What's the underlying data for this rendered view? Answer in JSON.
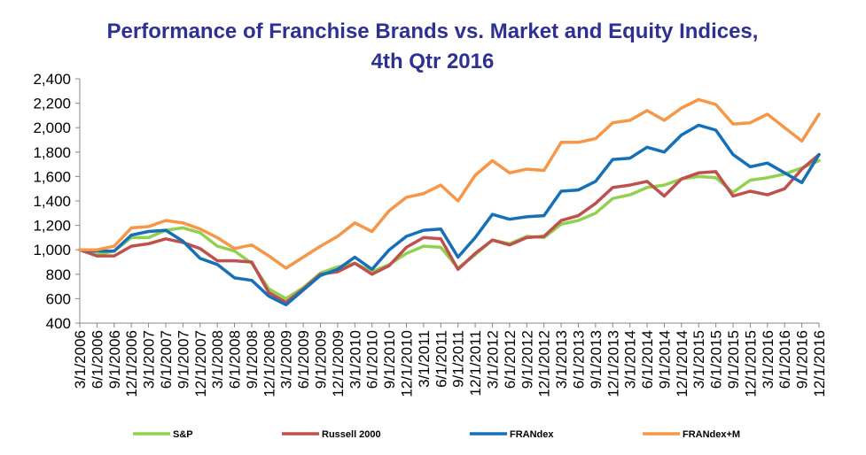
{
  "chart_data": {
    "type": "line",
    "title": "Performance of Franchise Brands vs. Market and Equity Indices,",
    "subtitle": "4th Qtr 2016",
    "xlabel": "",
    "ylabel": "",
    "ylim": [
      400,
      2400
    ],
    "yticks": [
      400,
      600,
      800,
      1000,
      1200,
      1400,
      1600,
      1800,
      2000,
      2200,
      2400
    ],
    "ytick_labels": [
      "400",
      "600",
      "800",
      "1,000",
      "1,200",
      "1,400",
      "1,600",
      "1,800",
      "2,000",
      "2,200",
      "2,400"
    ],
    "x": [
      "3/1/2006",
      "6/1/2006",
      "9/1/2006",
      "12/1/2006",
      "3/1/2007",
      "6/1/2007",
      "9/1/2007",
      "12/1/2007",
      "3/1/2008",
      "6/1/2008",
      "9/1/2008",
      "12/1/2008",
      "3/1/2009",
      "6/1/2009",
      "9/1/2009",
      "12/1/2009",
      "3/1/2010",
      "6/1/2010",
      "9/1/2010",
      "12/1/2010",
      "3/1/2011",
      "6/1/2011",
      "9/1/2011",
      "12/1/2011",
      "3/1/2012",
      "6/1/2012",
      "9/1/2012",
      "12/1/2012",
      "3/1/2013",
      "6/1/2013",
      "9/1/2013",
      "12/1/2013",
      "3/1/2014",
      "6/1/2014",
      "9/1/2014",
      "12/1/2014",
      "3/1/2015",
      "6/1/2015",
      "9/1/2015",
      "12/1/2015",
      "3/1/2016",
      "6/1/2016",
      "9/1/2016",
      "12/1/2016"
    ],
    "grid": false,
    "legend_position": "bottom",
    "series": [
      {
        "name": "S&P",
        "color": "#92d050",
        "values": [
          1000,
          960,
          990,
          1100,
          1100,
          1160,
          1180,
          1140,
          1030,
          990,
          890,
          680,
          600,
          690,
          810,
          860,
          890,
          820,
          880,
          970,
          1030,
          1020,
          850,
          960,
          1080,
          1050,
          1110,
          1100,
          1210,
          1240,
          1300,
          1420,
          1450,
          1510,
          1530,
          1580,
          1600,
          1590,
          1470,
          1570,
          1590,
          1620,
          1670,
          1730
        ]
      },
      {
        "name": "Russell 2000",
        "color": "#c0504d",
        "values": [
          1000,
          950,
          950,
          1030,
          1050,
          1090,
          1060,
          1010,
          910,
          910,
          900,
          650,
          570,
          680,
          800,
          820,
          890,
          800,
          870,
          1020,
          1100,
          1090,
          840,
          970,
          1080,
          1040,
          1100,
          1110,
          1240,
          1280,
          1380,
          1510,
          1530,
          1560,
          1440,
          1580,
          1630,
          1640,
          1440,
          1480,
          1450,
          1500,
          1660,
          1780
        ]
      },
      {
        "name": "FRANdex",
        "color": "#1570b8",
        "values": [
          1000,
          990,
          990,
          1120,
          1150,
          1160,
          1070,
          930,
          880,
          770,
          750,
          620,
          550,
          670,
          790,
          840,
          940,
          840,
          1000,
          1110,
          1160,
          1170,
          940,
          1100,
          1290,
          1250,
          1270,
          1280,
          1480,
          1490,
          1560,
          1740,
          1750,
          1840,
          1800,
          1940,
          2020,
          1980,
          1780,
          1680,
          1710,
          1630,
          1550,
          1780
        ]
      },
      {
        "name": "FRANdex+M",
        "color": "#f79646",
        "values": [
          1000,
          1000,
          1030,
          1180,
          1190,
          1240,
          1220,
          1170,
          1100,
          1010,
          1040,
          950,
          850,
          940,
          1030,
          1110,
          1220,
          1150,
          1320,
          1430,
          1460,
          1530,
          1400,
          1610,
          1730,
          1630,
          1660,
          1650,
          1880,
          1880,
          1910,
          2040,
          2060,
          2140,
          2060,
          2160,
          2230,
          2190,
          2030,
          2040,
          2110,
          2000,
          1890,
          2110
        ]
      }
    ]
  }
}
